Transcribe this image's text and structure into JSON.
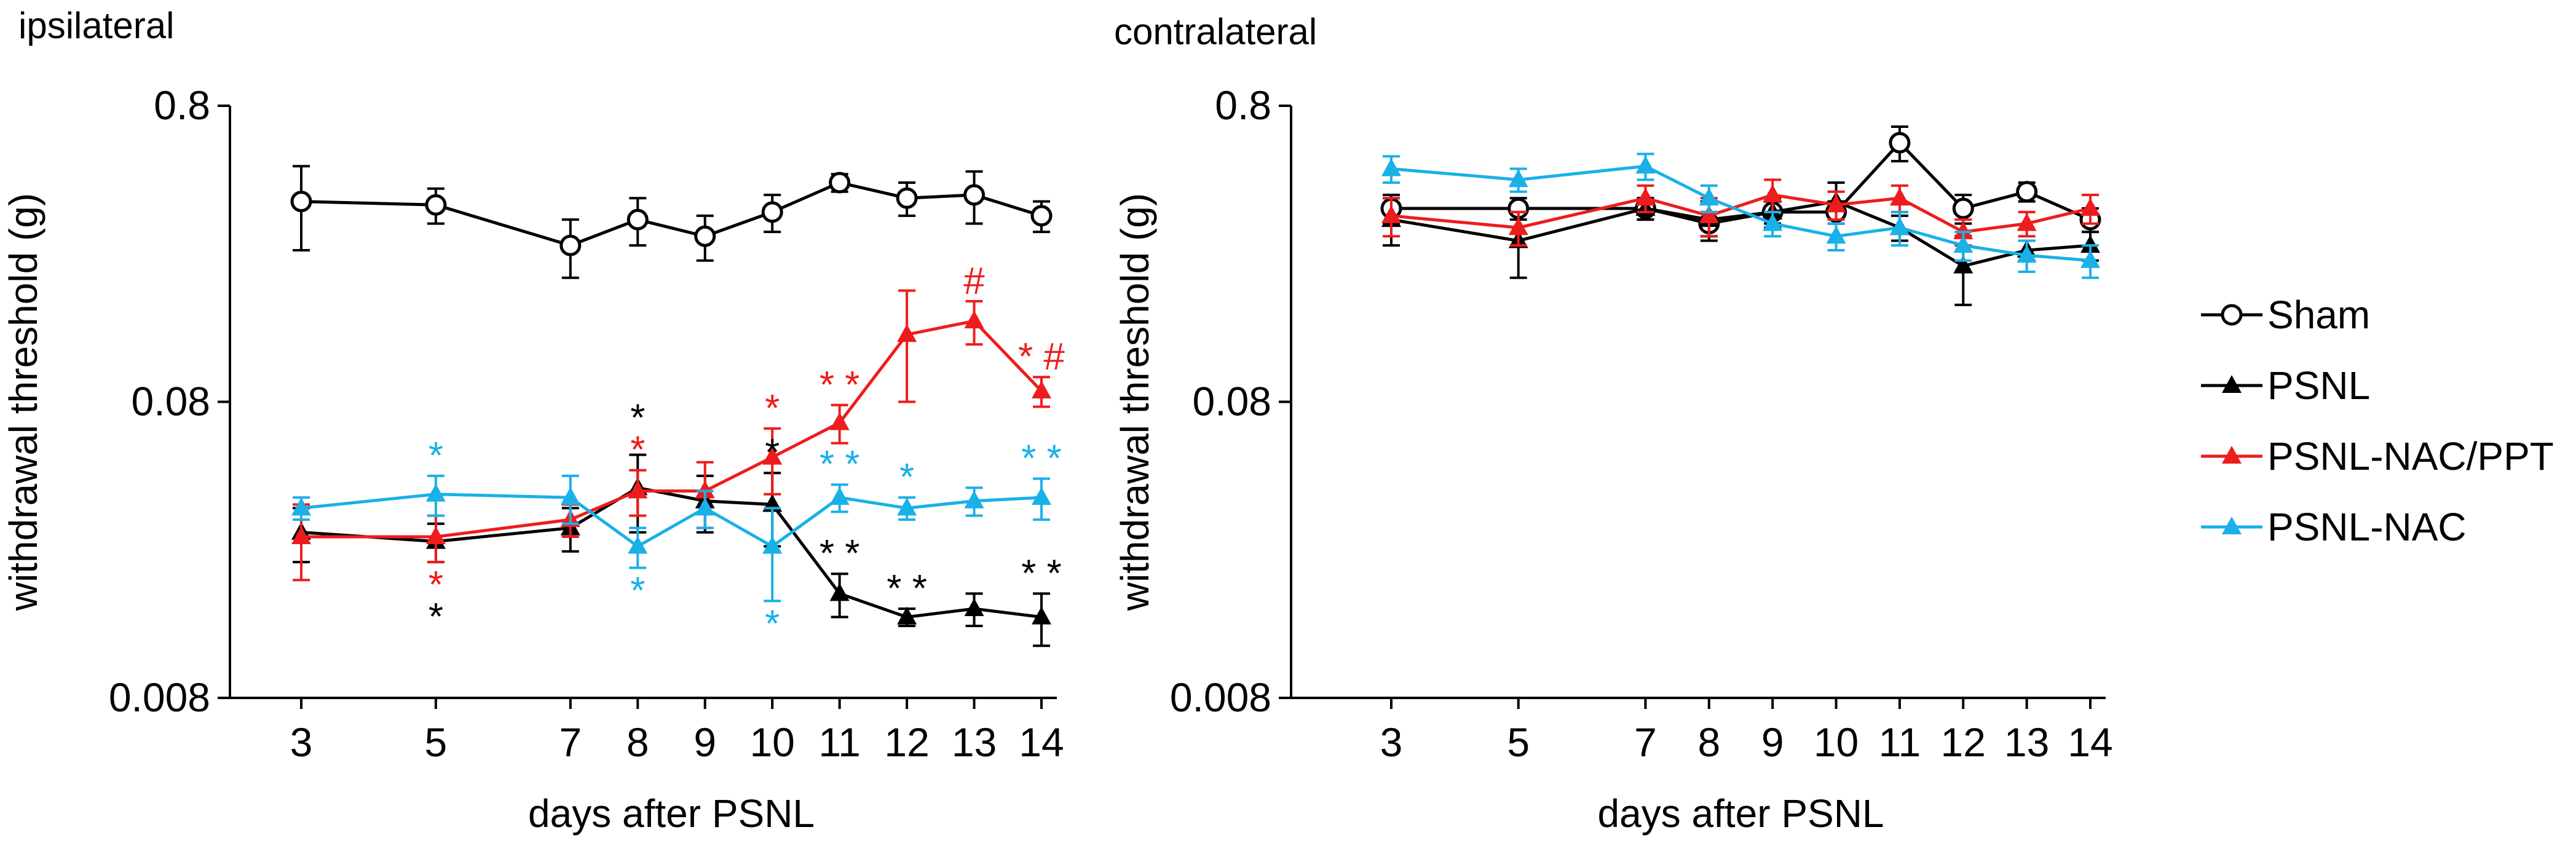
{
  "chart_data": [
    {
      "type": "line",
      "title": "ipsilateral",
      "xlabel": "days after PSNL",
      "ylabel": "withdrawal threshold (g)",
      "yscale": "log",
      "ylim": [
        0.008,
        0.8
      ],
      "yticks": [
        0.008,
        0.08,
        0.8
      ],
      "ytick_labels": [
        "0.008",
        "0.08",
        "0.8"
      ],
      "x": [
        3,
        5,
        7,
        8,
        9,
        10,
        11,
        12,
        13,
        14
      ],
      "xtick_labels": [
        "3",
        "5",
        "7",
        "8",
        "9",
        "10",
        "11",
        "12",
        "13",
        "14"
      ],
      "series": [
        {
          "name": "Sham",
          "marker": "circle-open",
          "color": "#000000",
          "values": [
            0.38,
            0.37,
            0.27,
            0.33,
            0.29,
            0.35,
            0.44,
            0.39,
            0.4,
            0.34
          ],
          "errors": [
            0.12,
            0.05,
            0.06,
            0.06,
            0.05,
            0.05,
            0.03,
            0.05,
            0.08,
            0.04
          ]
        },
        {
          "name": "PSNL",
          "marker": "triangle",
          "color": "#000000",
          "values": [
            0.029,
            0.027,
            0.03,
            0.041,
            0.037,
            0.036,
            0.018,
            0.015,
            0.016,
            0.015
          ],
          "errors": [
            0.006,
            0.004,
            0.005,
            0.012,
            0.008,
            0.01,
            0.003,
            0.001,
            0.002,
            0.003
          ]
        },
        {
          "name": "PSNL-NAC/PPT",
          "marker": "triangle",
          "color": "#ee1c1c",
          "values": [
            0.028,
            0.028,
            0.032,
            0.04,
            0.04,
            0.052,
            0.068,
            0.135,
            0.15,
            0.087
          ],
          "errors": [
            0.008,
            0.005,
            0.004,
            0.007,
            0.01,
            0.013,
            0.01,
            0.055,
            0.025,
            0.01
          ]
        },
        {
          "name": "PSNL-NAC",
          "marker": "triangle",
          "color": "#1ab0e8",
          "values": [
            0.035,
            0.039,
            0.038,
            0.026,
            0.035,
            0.026,
            0.038,
            0.035,
            0.037,
            0.038
          ],
          "errors": [
            0.003,
            0.006,
            0.007,
            0.004,
            0.005,
            0.009,
            0.004,
            0.003,
            0.004,
            0.006
          ]
        }
      ],
      "annotations": [
        {
          "x": 5,
          "text": "*",
          "color": "#1ab0e8",
          "position": "above",
          "series": "PSNL-NAC"
        },
        {
          "x": 5,
          "text": "*",
          "color": "#ee1c1c",
          "position": "below",
          "series": "PSNL-NAC/PPT"
        },
        {
          "x": 5,
          "text": "*",
          "color": "#000000",
          "position": "below",
          "series": "PSNL"
        },
        {
          "x": 8,
          "text": "*",
          "color": "#ee1c1c",
          "position": "above",
          "series": "PSNL-NAC/PPT"
        },
        {
          "x": 8,
          "text": "*",
          "color": "#000000",
          "position": "above",
          "series": "PSNL"
        },
        {
          "x": 8,
          "text": "*",
          "color": "#1ab0e8",
          "position": "below",
          "series": "PSNL-NAC"
        },
        {
          "x": 10,
          "text": "*",
          "color": "#ee1c1c",
          "position": "above",
          "series": "PSNL-NAC/PPT"
        },
        {
          "x": 10,
          "text": "*",
          "color": "#000000",
          "position": "above",
          "series": "PSNL"
        },
        {
          "x": 10,
          "text": "*",
          "color": "#1ab0e8",
          "position": "below",
          "series": "PSNL-NAC"
        },
        {
          "x": 11,
          "text": "* *",
          "color": "#ee1c1c",
          "position": "above",
          "series": "PSNL-NAC/PPT"
        },
        {
          "x": 11,
          "text": "* *",
          "color": "#1ab0e8",
          "position": "above",
          "series": "PSNL-NAC"
        },
        {
          "x": 11,
          "text": "* *",
          "color": "#000000",
          "position": "above",
          "series": "PSNL"
        },
        {
          "x": 12,
          "text": "*",
          "color": "#1ab0e8",
          "position": "above",
          "series": "PSNL-NAC"
        },
        {
          "x": 12,
          "text": "* *",
          "color": "#000000",
          "position": "above",
          "series": "PSNL"
        },
        {
          "x": 13,
          "text": "#",
          "color": "#ee1c1c",
          "position": "above",
          "series": "PSNL-NAC/PPT"
        },
        {
          "x": 14,
          "text": "* #",
          "color": "#ee1c1c",
          "position": "above",
          "series": "PSNL-NAC/PPT"
        },
        {
          "x": 14,
          "text": "* *",
          "color": "#1ab0e8",
          "position": "above",
          "series": "PSNL-NAC"
        },
        {
          "x": 14,
          "text": "* *",
          "color": "#000000",
          "position": "above",
          "series": "PSNL"
        }
      ]
    },
    {
      "type": "line",
      "title": "contralateral",
      "xlabel": "days after PSNL",
      "ylabel": "withdrawal threshold (g)",
      "yscale": "log",
      "ylim": [
        0.008,
        0.8
      ],
      "yticks": [
        0.008,
        0.08,
        0.8
      ],
      "ytick_labels": [
        "0.008",
        "0.08",
        "0.8"
      ],
      "x": [
        3,
        5,
        7,
        8,
        9,
        10,
        11,
        12,
        13,
        14
      ],
      "xtick_labels": [
        "3",
        "5",
        "7",
        "8",
        "9",
        "10",
        "11",
        "12",
        "13",
        "14"
      ],
      "series": [
        {
          "name": "Sham",
          "marker": "circle-open",
          "color": "#000000",
          "values": [
            0.36,
            0.36,
            0.36,
            0.32,
            0.35,
            0.35,
            0.6,
            0.36,
            0.41,
            0.33
          ],
          "errors": [
            0.04,
            0.03,
            0.03,
            0.03,
            0.03,
            0.03,
            0.08,
            0.04,
            0.03,
            0.03
          ]
        },
        {
          "name": "PSNL",
          "marker": "triangle",
          "color": "#000000",
          "values": [
            0.33,
            0.28,
            0.36,
            0.33,
            0.35,
            0.38,
            0.31,
            0.23,
            0.26,
            0.27
          ],
          "errors": [
            0.06,
            0.07,
            0.03,
            0.05,
            0.04,
            0.06,
            0.03,
            0.06,
            0.02,
            0.03
          ]
        },
        {
          "name": "PSNL-NAC/PPT",
          "marker": "triangle",
          "color": "#ee1c1c",
          "values": [
            0.34,
            0.31,
            0.39,
            0.34,
            0.4,
            0.37,
            0.39,
            0.3,
            0.32,
            0.36
          ],
          "errors": [
            0.05,
            0.04,
            0.04,
            0.05,
            0.05,
            0.04,
            0.04,
            0.03,
            0.03,
            0.04
          ]
        },
        {
          "name": "PSNL-NAC",
          "marker": "triangle",
          "color": "#1ab0e8",
          "values": [
            0.49,
            0.45,
            0.5,
            0.39,
            0.32,
            0.29,
            0.31,
            0.27,
            0.25,
            0.24
          ],
          "errors": [
            0.05,
            0.04,
            0.05,
            0.04,
            0.03,
            0.03,
            0.04,
            0.03,
            0.03,
            0.03
          ]
        }
      ],
      "annotations": []
    }
  ],
  "legend": {
    "position": "right",
    "items": [
      {
        "label": "Sham",
        "marker": "circle-open",
        "color": "#000000"
      },
      {
        "label": "PSNL",
        "marker": "triangle",
        "color": "#000000"
      },
      {
        "label": "PSNL-NAC/PPT",
        "marker": "triangle",
        "color": "#ee1c1c"
      },
      {
        "label": "PSNL-NAC",
        "marker": "triangle",
        "color": "#1ab0e8"
      }
    ]
  }
}
